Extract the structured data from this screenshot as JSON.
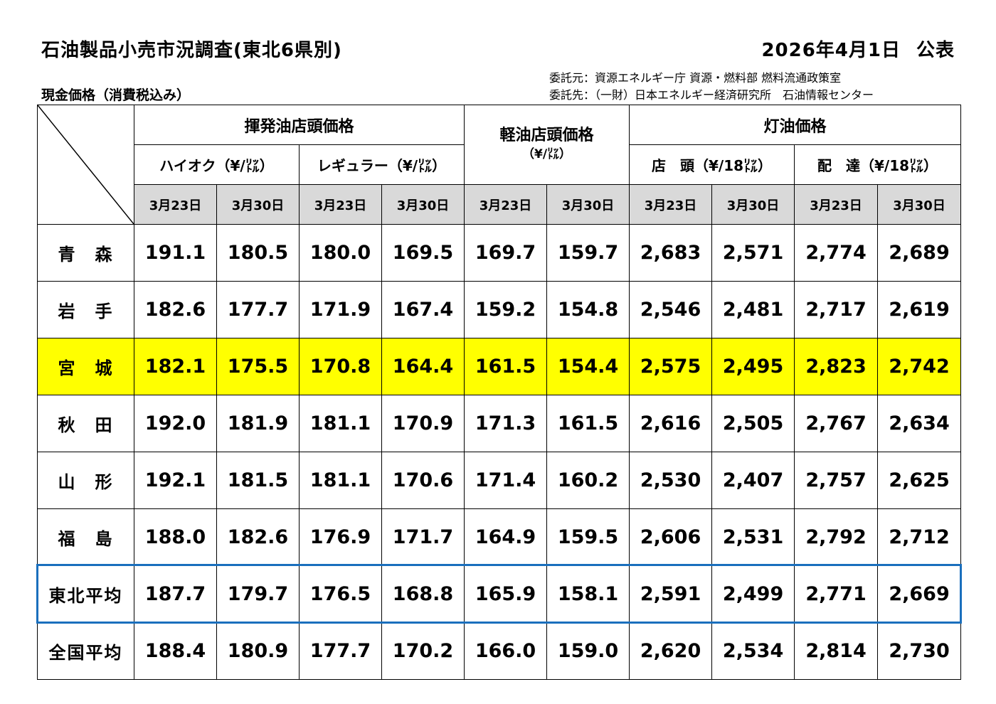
{
  "title": "石油製品小売市況調査(東北6県別)",
  "published": {
    "date": "2026年4月1日",
    "label": "公表"
  },
  "commissioned_by": "委託元：資源エネルギー庁 資源・燃料部 燃料流通政策室",
  "commissioned_to": "委託先：（一財）日本エネルギー経済研究所　石油情報センター",
  "price_note": "現金価格（消費税込み）",
  "headers": {
    "gasoline": "揮発油店頭価格",
    "highoctane": "ハイオク（¥/㍑）",
    "regular": "レギュラー（¥/㍑）",
    "diesel": "軽油店頭価格",
    "diesel_unit": "（¥/㍑）",
    "kerosene": "灯油価格",
    "storefront": "店　頭（¥/18㍑）",
    "delivery": "配　達（¥/18㍑）",
    "dates": [
      "3月23日",
      "3月30日",
      "3月23日",
      "3月30日",
      "3月23日",
      "3月30日",
      "3月23日",
      "3月30日",
      "3月23日",
      "3月30日"
    ]
  },
  "rows": [
    {
      "name": "青　森",
      "values": [
        "191.1",
        "180.5",
        "180.0",
        "169.5",
        "169.7",
        "159.7",
        "2,683",
        "2,571",
        "2,774",
        "2,689"
      ]
    },
    {
      "name": "岩　手",
      "values": [
        "182.6",
        "177.7",
        "171.9",
        "167.4",
        "159.2",
        "154.8",
        "2,546",
        "2,481",
        "2,717",
        "2,619"
      ]
    },
    {
      "name": "宮　城",
      "values": [
        "182.1",
        "175.5",
        "170.8",
        "164.4",
        "161.5",
        "154.4",
        "2,575",
        "2,495",
        "2,823",
        "2,742"
      ],
      "highlight": true
    },
    {
      "name": "秋　田",
      "values": [
        "192.0",
        "181.9",
        "181.1",
        "170.9",
        "171.3",
        "161.5",
        "2,616",
        "2,505",
        "2,767",
        "2,634"
      ]
    },
    {
      "name": "山　形",
      "values": [
        "192.1",
        "181.5",
        "181.1",
        "170.6",
        "171.4",
        "160.2",
        "2,530",
        "2,407",
        "2,757",
        "2,625"
      ]
    },
    {
      "name": "福　島",
      "values": [
        "188.0",
        "182.6",
        "176.9",
        "171.7",
        "164.9",
        "159.5",
        "2,606",
        "2,531",
        "2,792",
        "2,712"
      ]
    },
    {
      "name": "東北平均",
      "values": [
        "187.7",
        "179.7",
        "176.5",
        "168.8",
        "165.9",
        "158.1",
        "2,591",
        "2,499",
        "2,771",
        "2,669"
      ],
      "framed": true
    },
    {
      "name": "全国平均",
      "values": [
        "188.4",
        "180.9",
        "177.7",
        "170.2",
        "166.0",
        "159.0",
        "2,620",
        "2,534",
        "2,814",
        "2,730"
      ]
    }
  ],
  "colors": {
    "highlight_row": "#ffff00",
    "average_frame": "#1a6fbd",
    "date_header_bg": "#d9d9d9"
  }
}
